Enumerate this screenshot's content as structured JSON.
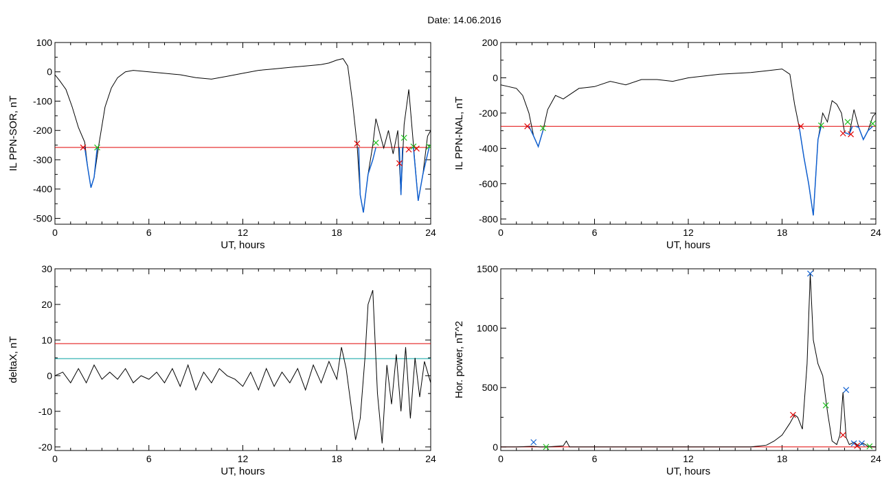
{
  "figure": {
    "title": "Date:  14.06.2016"
  },
  "chart_data": [
    {
      "id": "p1",
      "type": "line",
      "ylabel": "IL PPN-SOR, nT",
      "xlabel": "UT, hours",
      "xlim": [
        0,
        24
      ],
      "ylim": [
        -520,
        100
      ],
      "xticks": [
        0,
        6,
        12,
        18,
        24
      ],
      "yticks": [
        100,
        0,
        -100,
        -200,
        -300,
        -400,
        -500
      ],
      "threshold": {
        "value": -258,
        "color": "#e00000"
      },
      "series": [
        {
          "color": "#000000",
          "x": [
            0,
            0.3,
            0.7,
            1.1,
            1.5,
            1.9,
            2.1,
            2.3,
            2.5,
            2.8,
            3.2,
            3.6,
            4.0,
            4.5,
            5.0,
            6.0,
            7.0,
            8.0,
            9.0,
            10.0,
            11.0,
            12.0,
            13.0,
            14.0,
            15.0,
            16.0,
            17.0,
            17.5,
            18.0,
            18.4,
            18.7,
            19.0,
            19.3,
            19.5,
            19.7,
            20.0,
            20.3,
            20.5,
            20.7,
            21.0,
            21.3,
            21.6,
            21.9,
            22.1,
            22.3,
            22.6,
            22.9,
            23.2,
            23.5,
            23.8,
            24.0
          ],
          "y": [
            -10,
            -30,
            -60,
            -120,
            -190,
            -240,
            -330,
            -395,
            -360,
            -250,
            -120,
            -55,
            -20,
            0,
            5,
            0,
            -5,
            -10,
            -20,
            -25,
            -15,
            -5,
            5,
            10,
            15,
            20,
            25,
            30,
            40,
            45,
            20,
            -100,
            -250,
            -420,
            -480,
            -350,
            -250,
            -160,
            -200,
            -260,
            -200,
            -280,
            -200,
            -420,
            -180,
            -60,
            -250,
            -440,
            -350,
            -220,
            -200
          ]
        }
      ],
      "highlight": {
        "color": "#1060d0",
        "segments": [
          {
            "x": [
              1.9,
              2.1,
              2.3,
              2.5,
              2.7
            ],
            "y": [
              -258,
              -330,
              -395,
              -360,
              -258
            ]
          },
          {
            "x": [
              19.4,
              19.5,
              19.7,
              20.0,
              20.3,
              20.5
            ],
            "y": [
              -258,
              -420,
              -480,
              -350,
              -300,
              -258
            ]
          },
          {
            "x": [
              22.0,
              22.1,
              22.2
            ],
            "y": [
              -258,
              -420,
              -258
            ]
          },
          {
            "x": [
              22.8,
              22.9,
              23.2,
              23.5,
              23.9
            ],
            "y": [
              -258,
              -260,
              -440,
              -350,
              -258
            ]
          }
        ]
      },
      "markers": [
        {
          "x": 1.8,
          "y": -258,
          "color": "#e00000"
        },
        {
          "x": 2.7,
          "y": -258,
          "color": "#20c020"
        },
        {
          "x": 19.3,
          "y": -245,
          "color": "#e00000"
        },
        {
          "x": 20.5,
          "y": -242,
          "color": "#20c020"
        },
        {
          "x": 22.0,
          "y": -312,
          "color": "#e00000"
        },
        {
          "x": 22.3,
          "y": -225,
          "color": "#20c020"
        },
        {
          "x": 22.6,
          "y": -265,
          "color": "#e00000"
        },
        {
          "x": 22.9,
          "y": -255,
          "color": "#20c020"
        },
        {
          "x": 23.1,
          "y": -262,
          "color": "#e00000"
        },
        {
          "x": 23.9,
          "y": -255,
          "color": "#20c020"
        }
      ]
    },
    {
      "id": "p2",
      "type": "line",
      "ylabel": "IL PPN-NAL, nT",
      "xlabel": "UT, hours",
      "xlim": [
        0,
        24
      ],
      "ylim": [
        -830,
        200
      ],
      "xticks": [
        0,
        6,
        12,
        18,
        24
      ],
      "yticks": [
        200,
        0,
        -200,
        -400,
        -600,
        -800
      ],
      "threshold": {
        "value": -275,
        "color": "#e00000"
      },
      "series": [
        {
          "color": "#000000",
          "x": [
            0,
            0.5,
            1.0,
            1.4,
            1.8,
            2.1,
            2.4,
            2.7,
            3.0,
            3.5,
            4.0,
            5.0,
            6.0,
            7.0,
            8.0,
            9.0,
            10.0,
            11.0,
            12.0,
            13.0,
            14.0,
            15.0,
            16.0,
            17.0,
            18.0,
            18.5,
            18.8,
            19.1,
            19.4,
            19.7,
            20.0,
            20.3,
            20.6,
            20.9,
            21.2,
            21.5,
            21.8,
            22.0,
            22.3,
            22.6,
            22.9,
            23.2,
            23.5,
            23.8,
            24.0
          ],
          "y": [
            -40,
            -50,
            -60,
            -100,
            -200,
            -330,
            -390,
            -300,
            -180,
            -100,
            -120,
            -60,
            -50,
            -20,
            -40,
            -10,
            -10,
            -20,
            0,
            10,
            20,
            25,
            30,
            40,
            50,
            20,
            -150,
            -280,
            -450,
            -600,
            -780,
            -350,
            -200,
            -250,
            -130,
            -150,
            -200,
            -310,
            -320,
            -180,
            -280,
            -350,
            -300,
            -220,
            -200
          ]
        }
      ],
      "highlight": {
        "color": "#1060d0",
        "segments": [
          {
            "x": [
              1.8,
              2.1,
              2.4,
              2.7
            ],
            "y": [
              -275,
              -330,
              -390,
              -300
            ]
          },
          {
            "x": [
              19.1,
              19.4,
              19.7,
              20.0,
              20.3,
              20.5
            ],
            "y": [
              -280,
              -450,
              -600,
              -780,
              -350,
              -275
            ]
          },
          {
            "x": [
              22.0,
              22.3,
              22.5
            ],
            "y": [
              -310,
              -320,
              -275
            ]
          },
          {
            "x": [
              22.7,
              22.9,
              23.2,
              23.5,
              23.8
            ],
            "y": [
              -275,
              -280,
              -350,
              -300,
              -275
            ]
          }
        ]
      },
      "markers": [
        {
          "x": 1.7,
          "y": -275,
          "color": "#e00000"
        },
        {
          "x": 2.7,
          "y": -285,
          "color": "#20c020"
        },
        {
          "x": 19.2,
          "y": -275,
          "color": "#e00000"
        },
        {
          "x": 20.5,
          "y": -270,
          "color": "#20c020"
        },
        {
          "x": 21.9,
          "y": -315,
          "color": "#e00000"
        },
        {
          "x": 22.2,
          "y": -250,
          "color": "#20c020"
        },
        {
          "x": 22.4,
          "y": -320,
          "color": "#e00000"
        },
        {
          "x": 23.8,
          "y": -260,
          "color": "#20c020"
        }
      ]
    },
    {
      "id": "p3",
      "type": "line",
      "ylabel": "deltaX, nT",
      "xlabel": "UT, hours",
      "xlim": [
        0,
        24
      ],
      "ylim": [
        -21,
        30
      ],
      "xticks": [
        0,
        6,
        12,
        18,
        24
      ],
      "yticks": [
        30,
        20,
        10,
        0,
        -10,
        -20
      ],
      "thresholds": [
        {
          "value": 9,
          "color": "#e00000"
        },
        {
          "value": 4.8,
          "color": "#00a0a0"
        }
      ],
      "series": [
        {
          "color": "#000000",
          "x": [
            0,
            0.5,
            1.0,
            1.5,
            2.0,
            2.5,
            3.0,
            3.5,
            4.0,
            4.5,
            5.0,
            5.5,
            6.0,
            6.5,
            7.0,
            7.5,
            8.0,
            8.5,
            9.0,
            9.5,
            10.0,
            10.5,
            11.0,
            11.5,
            12.0,
            12.5,
            13.0,
            13.5,
            14.0,
            14.5,
            15.0,
            15.5,
            16.0,
            16.5,
            17.0,
            17.5,
            18.0,
            18.3,
            18.6,
            18.9,
            19.2,
            19.5,
            19.8,
            20.0,
            20.3,
            20.6,
            20.9,
            21.2,
            21.5,
            21.8,
            22.1,
            22.4,
            22.7,
            23.0,
            23.3,
            23.6,
            24.0
          ],
          "y": [
            0,
            1,
            -2,
            2,
            -2,
            3,
            -1,
            1,
            -1,
            2,
            -2,
            0,
            -1,
            1,
            -2,
            2,
            -3,
            3,
            -4,
            1,
            -2,
            2,
            0,
            -1,
            -3,
            1,
            -4,
            2,
            -3,
            1,
            -2,
            2,
            -4,
            3,
            -2,
            4,
            -1,
            8,
            2,
            -8,
            -18,
            -12,
            5,
            20,
            24,
            -5,
            -19,
            3,
            -8,
            6,
            -10,
            8,
            -12,
            5,
            -6,
            4,
            -2
          ]
        }
      ]
    },
    {
      "id": "p4",
      "type": "line",
      "ylabel": "Hor. power, nT^2",
      "xlabel": "UT, hours",
      "xlim": [
        0,
        24
      ],
      "ylim": [
        -30,
        1500
      ],
      "xticks": [
        0,
        6,
        12,
        18,
        24
      ],
      "yticks": [
        1500,
        1000,
        500,
        0
      ],
      "threshold": {
        "value": 0,
        "color": "#e00000"
      },
      "series": [
        {
          "color": "#000000",
          "x": [
            0,
            1.0,
            2.0,
            2.5,
            3.0,
            4.0,
            4.2,
            4.4,
            5.0,
            6.0,
            8.0,
            10.0,
            12.0,
            14.0,
            16.0,
            17.0,
            17.5,
            18.0,
            18.5,
            18.8,
            19.0,
            19.3,
            19.6,
            19.8,
            20.0,
            20.3,
            20.6,
            20.9,
            21.2,
            21.5,
            21.7,
            21.9,
            22.1,
            22.3,
            22.6,
            22.9,
            23.2,
            23.5,
            24.0
          ],
          "y": [
            0,
            0,
            5,
            0,
            0,
            10,
            50,
            0,
            0,
            0,
            0,
            0,
            0,
            0,
            0,
            15,
            50,
            100,
            200,
            270,
            250,
            150,
            700,
            1460,
            900,
            700,
            600,
            300,
            50,
            20,
            100,
            460,
            80,
            20,
            40,
            10,
            30,
            5,
            0
          ]
        }
      ],
      "markers": [
        {
          "x": 2.1,
          "y": 40,
          "color": "#1060d0"
        },
        {
          "x": 2.9,
          "y": 0,
          "color": "#20c020"
        },
        {
          "x": 18.7,
          "y": 270,
          "color": "#e00000"
        },
        {
          "x": 19.8,
          "y": 1460,
          "color": "#1060d0"
        },
        {
          "x": 20.8,
          "y": 350,
          "color": "#20c020"
        },
        {
          "x": 21.9,
          "y": 100,
          "color": "#e00000"
        },
        {
          "x": 22.1,
          "y": 480,
          "color": "#1060d0"
        },
        {
          "x": 22.6,
          "y": 30,
          "color": "#1060d0"
        },
        {
          "x": 22.8,
          "y": 10,
          "color": "#e00000"
        },
        {
          "x": 23.1,
          "y": 30,
          "color": "#1060d0"
        },
        {
          "x": 23.6,
          "y": 5,
          "color": "#20c020"
        }
      ]
    }
  ]
}
